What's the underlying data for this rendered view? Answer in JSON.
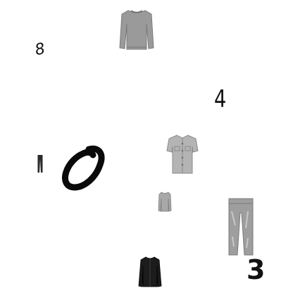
{
  "items": [
    {
      "type": "sweater",
      "icon": "sweater-icon"
    },
    {
      "type": "digit",
      "text": "8"
    },
    {
      "type": "digit",
      "text": "4"
    },
    {
      "type": "trousers",
      "icon": "trousers-icon"
    },
    {
      "type": "digit",
      "text": "0"
    },
    {
      "type": "shirt",
      "icon": "shirt-icon"
    },
    {
      "type": "pullover",
      "icon": "pullover-icon"
    },
    {
      "type": "trousers",
      "icon": "trousers-icon"
    },
    {
      "type": "coat",
      "icon": "coat-icon"
    },
    {
      "type": "digit",
      "text": "3"
    }
  ],
  "colors": {
    "background": "#ffffff",
    "ink": "#111111",
    "garment_gray": "#9a9a9a",
    "garment_dark": "#1c1c1c"
  }
}
